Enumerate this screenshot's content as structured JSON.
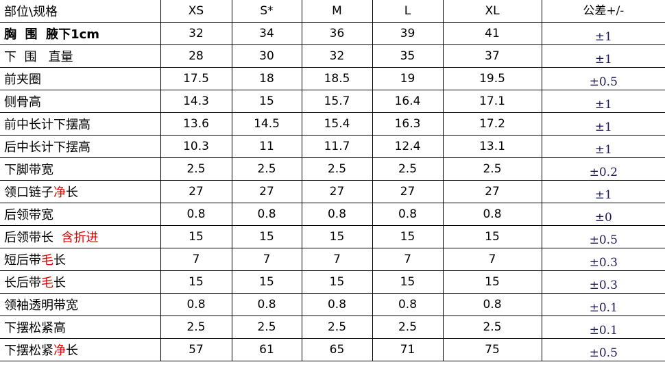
{
  "header": {
    "label": "部位\\规格",
    "sizes": [
      "XS",
      "S*",
      "M",
      "L",
      "XL"
    ],
    "tolerance": "公差+/-"
  },
  "colors": {
    "highlight": "#e00000",
    "tolerance_text": "#1a1a5a"
  },
  "rows": [
    {
      "parts": [
        {
          "text": "胸  围  腋下1cm",
          "red": false
        }
      ],
      "bold": true,
      "values": [
        "32",
        "34",
        "36",
        "39",
        "41"
      ],
      "tol": "±1"
    },
    {
      "parts": [
        {
          "text": "下  围   直量",
          "red": false
        }
      ],
      "values": [
        "28",
        "30",
        "32",
        "35",
        "37"
      ],
      "tol": "±1"
    },
    {
      "parts": [
        {
          "text": "前夹圈",
          "red": false
        }
      ],
      "values": [
        "17.5",
        "18",
        "18.5",
        "19",
        "19.5"
      ],
      "tol": "±0.5"
    },
    {
      "parts": [
        {
          "text": "侧骨高",
          "red": false
        }
      ],
      "values": [
        "14.3",
        "15",
        "15.7",
        "16.4",
        "17.1"
      ],
      "tol": "±1"
    },
    {
      "parts": [
        {
          "text": "前中长计下摆高",
          "red": false
        }
      ],
      "values": [
        "13.6",
        "14.5",
        "15.4",
        "16.3",
        "17.2"
      ],
      "tol": "±1"
    },
    {
      "parts": [
        {
          "text": "后中长计下摆高",
          "red": false
        }
      ],
      "values": [
        "10.3",
        "11",
        "11.7",
        "12.4",
        "13.1"
      ],
      "tol": "±1"
    },
    {
      "parts": [
        {
          "text": "下脚带宽",
          "red": false
        }
      ],
      "values": [
        "2.5",
        "2.5",
        "2.5",
        "2.5",
        "2.5"
      ],
      "tol": "±0.2"
    },
    {
      "parts": [
        {
          "text": "领口链子",
          "red": false
        },
        {
          "text": "净",
          "red": true
        },
        {
          "text": "长",
          "red": false
        }
      ],
      "values": [
        "27",
        "27",
        "27",
        "27",
        "27"
      ],
      "tol": "±1"
    },
    {
      "parts": [
        {
          "text": "后领带宽",
          "red": false
        }
      ],
      "values": [
        "0.8",
        "0.8",
        "0.8",
        "0.8",
        "0.8"
      ],
      "tol": "±0"
    },
    {
      "parts": [
        {
          "text": "后领带长  ",
          "red": false
        },
        {
          "text": "含折进",
          "red": true
        }
      ],
      "values": [
        "15",
        "15",
        "15",
        "15",
        "15"
      ],
      "tol": "±0.5"
    },
    {
      "parts": [
        {
          "text": "短后带",
          "red": false
        },
        {
          "text": "毛",
          "red": true
        },
        {
          "text": "长",
          "red": false
        }
      ],
      "values": [
        "7",
        "7",
        "7",
        "7",
        "7"
      ],
      "tol": "±0.3"
    },
    {
      "parts": [
        {
          "text": "长后带",
          "red": false
        },
        {
          "text": "毛",
          "red": true
        },
        {
          "text": "长",
          "red": false
        }
      ],
      "values": [
        "15",
        "15",
        "15",
        "15",
        "15"
      ],
      "tol": "±0.3"
    },
    {
      "parts": [
        {
          "text": "领袖透明带宽",
          "red": false
        }
      ],
      "values": [
        "0.8",
        "0.8",
        "0.8",
        "0.8",
        "0.8"
      ],
      "tol": "±0.1"
    },
    {
      "parts": [
        {
          "text": "下摆松紧高",
          "red": false
        }
      ],
      "values": [
        "2.5",
        "2.5",
        "2.5",
        "2.5",
        "2.5"
      ],
      "tol": "±0.1"
    },
    {
      "parts": [
        {
          "text": "下摆松紧",
          "red": false
        },
        {
          "text": "净",
          "red": true
        },
        {
          "text": "长",
          "red": false
        }
      ],
      "values": [
        "57",
        "61",
        "65",
        "71",
        "75"
      ],
      "tol": "±0.5"
    }
  ]
}
